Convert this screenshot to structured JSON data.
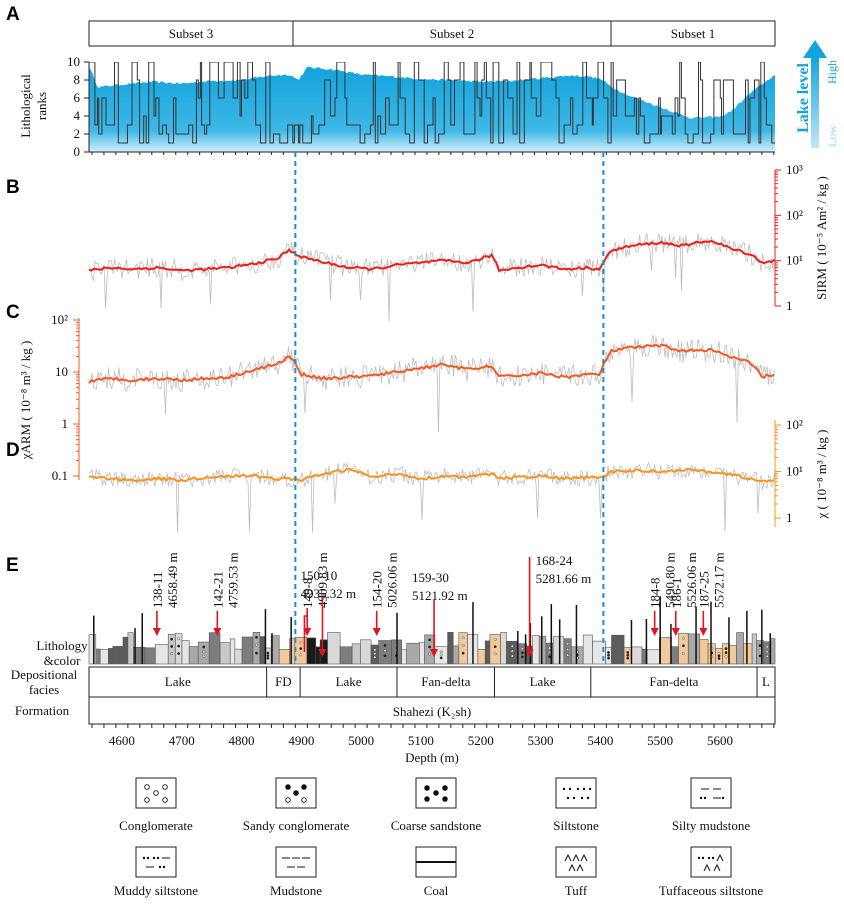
{
  "chart_data": {
    "panels": {
      "A": {
        "letter": "A",
        "type": "line",
        "subsets": [
          "Subset 3",
          "Subset 2",
          "Subset 1"
        ],
        "ylabel_line1": "Lithological",
        "ylabel_line2": "ranks",
        "yticks": [
          "0",
          "2",
          "4",
          "6",
          "8",
          "10"
        ],
        "ylim": [
          0,
          10
        ],
        "lake_level_label": "Lake level",
        "lake_level_high": "High",
        "lake_level_low": "Low",
        "colors": {
          "lake": "#12a3dc",
          "lake_light": "#bfe7f7",
          "rank_line": "#333333"
        },
        "lake_level_series": {
          "depth": [
            4545,
            4560,
            4600,
            4650,
            4700,
            4750,
            4800,
            4830,
            4850,
            4880,
            4895,
            4910,
            4950,
            5000,
            5050,
            5100,
            5150,
            5200,
            5250,
            5300,
            5350,
            5380,
            5400,
            5420,
            5450,
            5500,
            5550,
            5600,
            5620,
            5650,
            5670,
            5690
          ],
          "level": [
            9.5,
            7.2,
            7.5,
            7.8,
            7.6,
            7.9,
            8.0,
            8.3,
            8.5,
            8.6,
            8.0,
            9.4,
            9.2,
            8.6,
            8.4,
            8.1,
            8.0,
            7.8,
            7.9,
            8.2,
            8.5,
            8.4,
            8.1,
            7.2,
            6.2,
            5.0,
            3.8,
            3.9,
            4.6,
            6.5,
            7.5,
            8.5
          ]
        },
        "rank_series_note": "Lithological rank (0-10) step series along depth"
      },
      "B": {
        "letter": "B",
        "type": "line",
        "ylabel": "SIRM ( 10⁻⁵ Am² / kg )",
        "yscale": "log",
        "yticks": [
          "1",
          "10¹",
          "10²",
          "10³"
        ],
        "color": "#ef1c1c",
        "smoothed": {
          "depth": [
            4545,
            4580,
            4620,
            4660,
            4700,
            4740,
            4780,
            4820,
            4860,
            4880,
            4900,
            4940,
            4980,
            5020,
            5060,
            5100,
            5140,
            5180,
            5220,
            5230,
            5260,
            5300,
            5340,
            5380,
            5400,
            5420,
            5460,
            5500,
            5540,
            5580,
            5620,
            5650,
            5670,
            5690
          ],
          "value": [
            6,
            7,
            6.5,
            7,
            6,
            6.5,
            7,
            8.5,
            11,
            17,
            12,
            9,
            7,
            6.5,
            8,
            9,
            10,
            9,
            13,
            6,
            7,
            8,
            6.5,
            7,
            6.5,
            17,
            22,
            25,
            21,
            28,
            18,
            14,
            9,
            10
          ]
        }
      },
      "C": {
        "letter": "C",
        "type": "line",
        "ylabel": "χARM ( 10⁻⁸ m³ / kg )",
        "yscale": "log",
        "yticks": [
          "10²",
          "10",
          "1",
          "0.1"
        ],
        "color": "#f05a22",
        "smoothed": {
          "depth": [
            4545,
            4580,
            4620,
            4660,
            4700,
            4740,
            4780,
            4820,
            4860,
            4880,
            4900,
            4940,
            4980,
            5020,
            5060,
            5100,
            5140,
            5180,
            5220,
            5230,
            5260,
            5300,
            5340,
            5380,
            5400,
            5420,
            5460,
            5500,
            5540,
            5580,
            5620,
            5650,
            5670,
            5690
          ],
          "value": [
            6.5,
            7.5,
            7,
            7.5,
            7,
            7.5,
            8,
            11,
            14,
            20,
            9,
            7.5,
            8,
            8.5,
            10,
            12,
            14,
            11,
            13,
            8,
            8.5,
            9.5,
            8,
            9,
            9,
            26,
            30,
            32,
            25,
            27,
            19,
            15,
            8,
            9
          ]
        }
      },
      "D": {
        "letter": "D",
        "type": "line",
        "ylabel": "χ ( 10⁻⁸ m³ / kg )",
        "yscale": "log",
        "yticks": [
          "1",
          "10¹",
          "10²"
        ],
        "color": "#f7941d",
        "smoothed": {
          "depth": [
            4545,
            4580,
            4620,
            4660,
            4700,
            4740,
            4780,
            4820,
            4860,
            4880,
            4900,
            4940,
            4980,
            5020,
            5060,
            5100,
            5140,
            5180,
            5220,
            5230,
            5260,
            5300,
            5340,
            5380,
            5400,
            5420,
            5460,
            5500,
            5540,
            5580,
            5620,
            5650,
            5670,
            5690
          ],
          "value": [
            8,
            7,
            6.5,
            7,
            6.5,
            7.5,
            8,
            8,
            7,
            7,
            6.5,
            9,
            11,
            7.5,
            9,
            7,
            8,
            7.5,
            9,
            7,
            7.5,
            8,
            7,
            7.5,
            7,
            10,
            10.5,
            10,
            11,
            10,
            8.5,
            7,
            6,
            6.5
          ]
        }
      },
      "E": {
        "letter": "E",
        "type": "table",
        "samples": [
          {
            "id": "138-11",
            "depth": "4658.49 m",
            "d": 4658.49
          },
          {
            "id": "142-21",
            "depth": "4759.53 m",
            "d": 4759.53
          },
          {
            "id": "149-8",
            "depth": "4909.83 m",
            "d": 4909.83
          },
          {
            "id": "150-10",
            "depth": "4935.32 m",
            "d": 4935.32
          },
          {
            "id": "154-20",
            "depth": "5026.06 m",
            "d": 5026.06
          },
          {
            "id": "159-30",
            "depth": "5121.92 m",
            "d": 5121.92
          },
          {
            "id": "168-24",
            "depth": "5281.66 m",
            "d": 5281.66
          },
          {
            "id": "184-8",
            "depth": "5490.80 m",
            "d": 5490.8
          },
          {
            "id": "186-1",
            "depth": "5526.06 m",
            "d": 5526.06
          },
          {
            "id": "187-25",
            "depth": "5572.17 m",
            "d": 5572.17
          }
        ],
        "row_labels": {
          "lithology_line1": "Lithology",
          "lithology_line2": "&color",
          "facies_line1": "Depositional",
          "facies_line2": "facies",
          "formation": "Formation"
        },
        "facies": [
          {
            "label": "Lake",
            "start": 4545,
            "end": 4842
          },
          {
            "label": "FD",
            "start": 4842,
            "end": 4898
          },
          {
            "label": "Lake",
            "start": 4898,
            "end": 5060
          },
          {
            "label": "Fan-delta",
            "start": 5060,
            "end": 5223
          },
          {
            "label": "Lake",
            "start": 5223,
            "end": 5384
          },
          {
            "label": "Fan-delta",
            "start": 5384,
            "end": 5662
          },
          {
            "label": "L",
            "start": 5662,
            "end": 5692
          }
        ],
        "formation": "Shahezi (K₂sh)",
        "xaxis": {
          "label": "Depth (m)",
          "ticks": [
            4600,
            4700,
            4800,
            4900,
            5000,
            5100,
            5200,
            5300,
            5400,
            5500,
            5600
          ],
          "xlim": [
            4545,
            5692
          ]
        }
      }
    },
    "legend": [
      {
        "label": "Conglomerate",
        "pattern": "conglomerate"
      },
      {
        "label": "Sandy conglomerate",
        "pattern": "sandy"
      },
      {
        "label": "Coarse sandstone",
        "pattern": "coarse"
      },
      {
        "label": "Siltstone",
        "pattern": "siltstone"
      },
      {
        "label": "Silty mudstone",
        "pattern": "siltymud"
      },
      {
        "label": "Muddy siltstone",
        "pattern": "muddysilt"
      },
      {
        "label": "Mudstone",
        "pattern": "mudstone"
      },
      {
        "label": "Coal",
        "pattern": "coal"
      },
      {
        "label": "Tuff",
        "pattern": "tuff"
      },
      {
        "label": "Tuffaceous siltstone",
        "pattern": "tuffsilt"
      }
    ],
    "boundaries_depth": [
      4890,
      5405
    ]
  }
}
